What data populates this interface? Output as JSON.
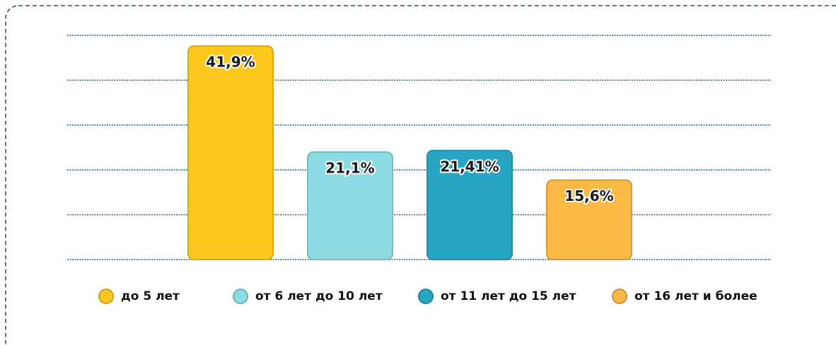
{
  "chart_data": {
    "type": "bar",
    "categories": [
      "до 5 лет",
      "от 6 лет до 10 лет",
      "от 11 лет до 15 лет",
      "от 16 лет и более"
    ],
    "values": [
      41.9,
      21.1,
      21.41,
      15.6
    ],
    "value_labels": [
      "41,9%",
      "21,1%",
      "21,41%",
      "15,6%"
    ],
    "colors": [
      "#fdc81e",
      "#8ddbe3",
      "#27a6c4",
      "#f9b944"
    ],
    "ylim": [
      0,
      44
    ],
    "grid": true,
    "legend": "bottom"
  }
}
